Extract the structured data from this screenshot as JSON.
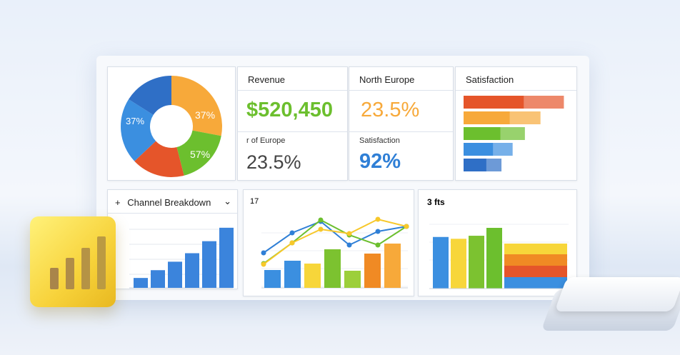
{
  "colors": {
    "green": "#6cbf2e",
    "orange": "#f7a93a",
    "blue": "#2f7fd6",
    "red": "#e5552a",
    "yellow": "#f7d63a"
  },
  "pie_card": {
    "labels": {
      "orange": "37%",
      "green": "57%",
      "blue": "37%"
    }
  },
  "revenue_card": {
    "title": "Revenue",
    "value": "$520,450",
    "sub_label": "r of Europe",
    "sub_value": "23.5%"
  },
  "europe_card": {
    "title": "North Europe",
    "value": "23.5%",
    "sub_label": "Satisfaction",
    "sub_value": "92%"
  },
  "satisfaction_card": {
    "title": "Satisfaction"
  },
  "channel_card": {
    "title": "Channel Breakdown",
    "dropdown_icon": "chevron-down-icon",
    "add_icon": "plus-icon"
  },
  "line_card": {
    "title": "17"
  },
  "stack_card": {
    "title": "3 fts"
  },
  "chart_data": [
    {
      "type": "pie",
      "donut": true,
      "values": [
        28,
        18,
        17,
        21,
        16
      ],
      "colors": [
        "#f7a93a",
        "#6cbf2e",
        "#e5552a",
        "#3b8fe0",
        "#2f6fc6"
      ]
    },
    {
      "type": "bar",
      "orientation": "horizontal",
      "values": [
        0.9,
        0.69,
        0.55,
        0.44,
        0.34
      ],
      "colors": [
        "#e5552a",
        "#f7a93a",
        "#6cbf2e",
        "#3b8fe0",
        "#2f6fc6"
      ]
    },
    {
      "type": "bar",
      "values": [
        14,
        25,
        37,
        49,
        66,
        85
      ],
      "color": "#3b84dc"
    },
    {
      "type": "bar+line",
      "bars": [
        25,
        38,
        34,
        54,
        24,
        48,
        62
      ],
      "bar_colors": [
        "#3b8fe0",
        "#3b8fe0",
        "#f7d63a",
        "#7cc230",
        "#9ccf3a",
        "#f08a24",
        "#f7a93a"
      ],
      "series": [
        {
          "color": "#2f7fd6",
          "values": [
            49,
            77,
            93,
            60,
            79,
            86
          ]
        },
        {
          "color": "#6cbf2e",
          "values": [
            34,
            63,
            95,
            74,
            60,
            86
          ]
        },
        {
          "color": "#f7c82a",
          "values": [
            33,
            63,
            82,
            76,
            96,
            86
          ]
        }
      ]
    },
    {
      "type": "bar",
      "values": [
        85,
        82,
        87,
        100
      ],
      "colors": [
        "#3b8fe0",
        "#f7d63a",
        "#7cc230",
        "#6cbf2e"
      ],
      "stacked": [
        {
          "color": "#3b8fe0",
          "value": 16
        },
        {
          "color": "#e5552a",
          "value": 16
        },
        {
          "color": "#f08a24",
          "value": 16
        },
        {
          "color": "#f7d63a",
          "value": 15
        }
      ]
    }
  ]
}
